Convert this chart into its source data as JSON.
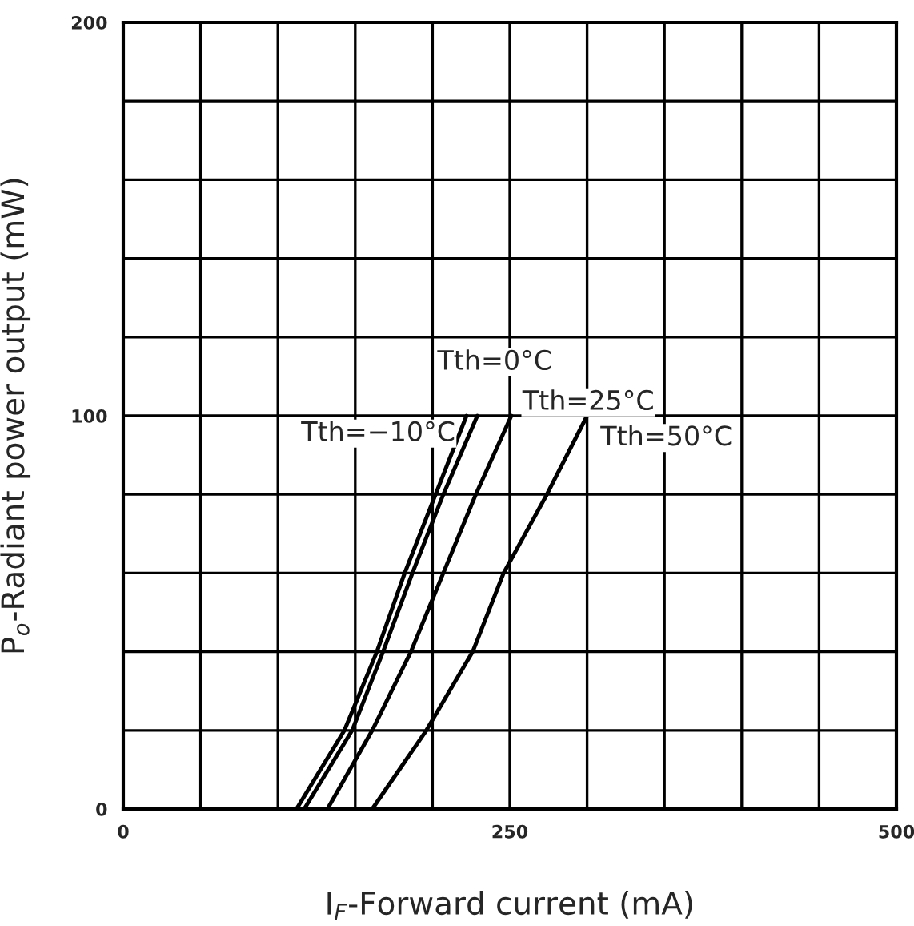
{
  "chart_data": {
    "type": "line",
    "xlabel": "I$_{F}$-Forward current (mA)",
    "ylabel": "P$_{o}$-Radiant power output (mW)",
    "xlim": [
      0,
      500
    ],
    "ylim": [
      0,
      200
    ],
    "xticks": [
      0,
      250,
      500
    ],
    "yticks": [
      0,
      100,
      200
    ],
    "grid": true,
    "legend": false,
    "marker": "none",
    "line_style": "solid",
    "series": [
      {
        "name": "Tth=−10°C",
        "color": "#000000",
        "x": [
          112,
          143,
          164,
          182,
          202,
          222
        ],
        "values": [
          0,
          20,
          40,
          60,
          80,
          100
        ]
      },
      {
        "name": "Tth=0°C",
        "color": "#000000",
        "x": [
          117,
          148,
          168,
          187,
          207,
          229
        ],
        "values": [
          0,
          20,
          40,
          60,
          80,
          100
        ]
      },
      {
        "name": "Tth=25°C",
        "color": "#000000",
        "x": [
          132,
          161,
          186,
          207,
          228,
          251
        ],
        "values": [
          0,
          20,
          40,
          60,
          80,
          100
        ]
      },
      {
        "name": "Tth=50°C",
        "color": "#000000",
        "x": [
          161,
          196,
          226,
          246,
          274,
          300
        ],
        "values": [
          0,
          20,
          40,
          60,
          80,
          100
        ]
      }
    ]
  }
}
